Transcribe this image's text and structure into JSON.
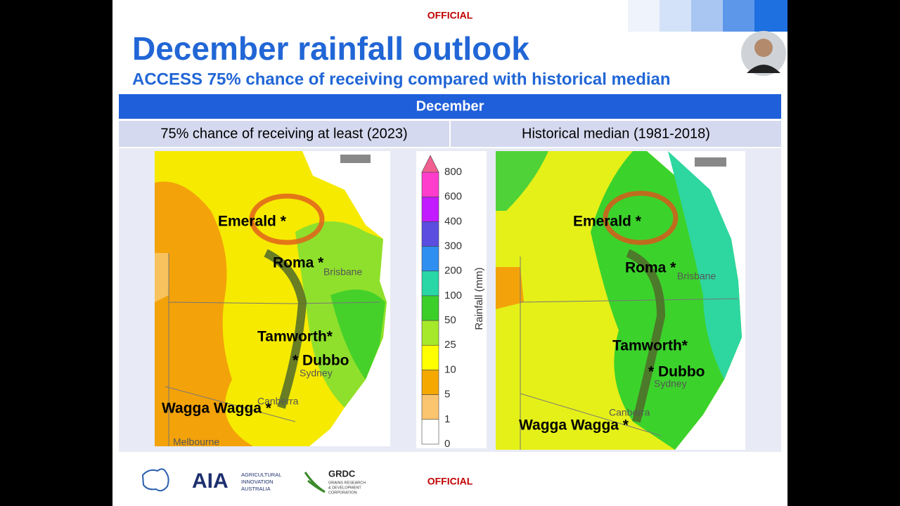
{
  "slide": {
    "classification_top": "OFFICIAL",
    "title": "December rainfall outlook",
    "subtitle": "ACCESS 75% chance of receiving compared with historical median",
    "table": {
      "header": "December",
      "columns": [
        "75% chance of receiving at least (2023)",
        "Historical median (1981-2018)"
      ]
    },
    "map_left": {
      "labels": [
        "Emerald *",
        "Roma *",
        "Tamworth*",
        "* Dubbo",
        "Wagga Wagga *"
      ],
      "cities": [
        "Brisbane",
        "Sydney",
        "Canberra",
        "Melbourne"
      ]
    },
    "map_right": {
      "labels": [
        "Emerald *",
        "Roma *",
        "Tamworth*",
        "* Dubbo",
        "Wagga Wagga *"
      ],
      "cities": [
        "Brisbane",
        "Sydney",
        "Canberra"
      ]
    },
    "colorbar": {
      "label": "Rainfall (mm)",
      "ticks": [
        800,
        600,
        400,
        300,
        200,
        100,
        50,
        25,
        10,
        5,
        1,
        0
      ],
      "colors": [
        "#ff3dcc",
        "#c21bff",
        "#5a4de0",
        "#2e8ff0",
        "#29d6a6",
        "#3ccf2a",
        "#a6e82a",
        "#ffff00",
        "#f5a800",
        "#fbc46e",
        "#ffffff"
      ]
    },
    "footer": {
      "aia": "AIA",
      "aia_name": [
        "AGRICULTURAL",
        "INNOVATION",
        "AUSTRALIA"
      ],
      "grdc": "GRDC",
      "grdc_name": [
        "GRAINS RESEARCH",
        "& DEVELOPMENT",
        "CORPORATION"
      ],
      "classification_bottom": "OFFICIAL"
    }
  }
}
